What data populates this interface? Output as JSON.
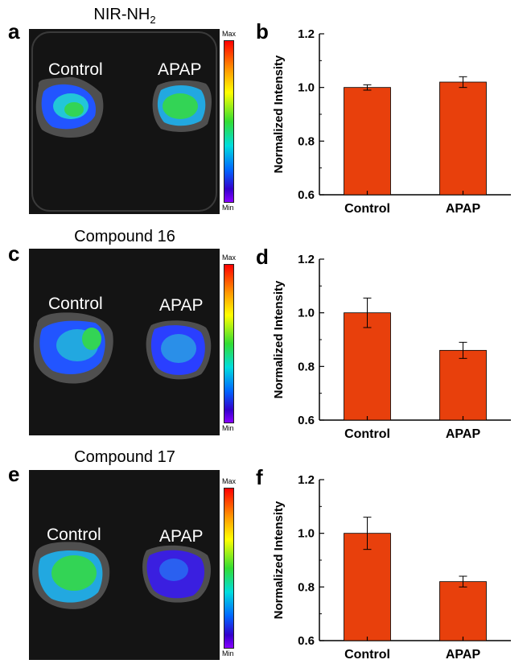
{
  "colors": {
    "bar": "#e8400c",
    "bar_edge": "#000000",
    "image_background": "#141414",
    "label_color": "#ffffff"
  },
  "panels": [
    {
      "image_letter": "a",
      "chart_letter": "b",
      "probe_base": "NIR-NH",
      "probe_sub": "2",
      "left_label": "Control",
      "right_label": "APAP",
      "scale_max": "Max",
      "scale_min": "Min"
    },
    {
      "image_letter": "c",
      "chart_letter": "d",
      "probe_base": "Compound 16",
      "probe_sub": "",
      "left_label": "Control",
      "right_label": "APAP",
      "scale_max": "Max",
      "scale_min": "Min"
    },
    {
      "image_letter": "e",
      "chart_letter": "f",
      "probe_base": "Compound 17",
      "probe_sub": "",
      "left_label": "Control",
      "right_label": "APAP",
      "scale_max": "Max",
      "scale_min": "Min"
    }
  ],
  "chart_data": [
    {
      "type": "bar",
      "panel": "b",
      "categories": [
        "Control",
        "APAP"
      ],
      "values": [
        1.0,
        1.02
      ],
      "errors": [
        0.01,
        0.02
      ],
      "ylabel": "Normalized Intensity",
      "xlabel": "",
      "ylim": [
        0.6,
        1.2
      ],
      "yticks": [
        "0.6",
        "0.8",
        "1.0",
        "1.2"
      ],
      "ytick_values": [
        0.6,
        0.8,
        1.0,
        1.2
      ]
    },
    {
      "type": "bar",
      "panel": "d",
      "categories": [
        "Control",
        "APAP"
      ],
      "values": [
        1.0,
        0.86
      ],
      "errors": [
        0.055,
        0.03
      ],
      "ylabel": "Normalized Intensity",
      "xlabel": "",
      "ylim": [
        0.6,
        1.2
      ],
      "yticks": [
        "0.6",
        "0.8",
        "1.0",
        "1.2"
      ],
      "ytick_values": [
        0.6,
        0.8,
        1.0,
        1.2
      ]
    },
    {
      "type": "bar",
      "panel": "f",
      "categories": [
        "Control",
        "APAP"
      ],
      "values": [
        1.0,
        0.82
      ],
      "errors": [
        0.06,
        0.02
      ],
      "ylabel": "Normalized Intensity",
      "xlabel": "",
      "ylim": [
        0.6,
        1.2
      ],
      "yticks": [
        "0.6",
        "0.8",
        "1.0",
        "1.2"
      ],
      "ytick_values": [
        0.6,
        0.8,
        1.0,
        1.2
      ]
    }
  ]
}
